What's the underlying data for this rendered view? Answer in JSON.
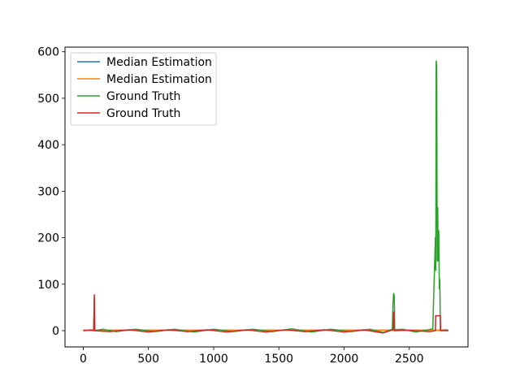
{
  "chart_data": {
    "type": "line",
    "title": "",
    "xlabel": "",
    "ylabel": "",
    "xlim": [
      -140,
      2950
    ],
    "ylim": [
      -35,
      610
    ],
    "x_ticks": [
      0,
      500,
      1000,
      1500,
      2000,
      2500
    ],
    "y_ticks": [
      0,
      100,
      200,
      300,
      400,
      500,
      600
    ],
    "x_tick_labels": [
      "0",
      "500",
      "1000",
      "1500",
      "2000",
      "2500"
    ],
    "y_tick_labels": [
      "0",
      "100",
      "200",
      "300",
      "400",
      "500",
      "600"
    ],
    "grid": false,
    "legend_position": "top-left",
    "series": [
      {
        "name": "Median Estimation",
        "color": "#1f77b4",
        "points": [
          [
            0,
            1
          ],
          [
            2800,
            1
          ]
        ]
      },
      {
        "name": "Median Estimation",
        "color": "#ff7f0e",
        "points": [
          [
            0,
            1
          ],
          [
            2800,
            1
          ]
        ]
      },
      {
        "name": "Ground Truth",
        "color": "#2ca02c",
        "points": [
          [
            0,
            0
          ],
          [
            60,
            2
          ],
          [
            80,
            0
          ],
          [
            85,
            75
          ],
          [
            88,
            0
          ],
          [
            150,
            3
          ],
          [
            250,
            -2
          ],
          [
            400,
            3
          ],
          [
            550,
            -2
          ],
          [
            700,
            3
          ],
          [
            850,
            -3
          ],
          [
            1000,
            3
          ],
          [
            1150,
            -2
          ],
          [
            1300,
            3
          ],
          [
            1450,
            -2
          ],
          [
            1600,
            4
          ],
          [
            1750,
            -3
          ],
          [
            1900,
            3
          ],
          [
            2050,
            -2
          ],
          [
            2200,
            3
          ],
          [
            2300,
            -4
          ],
          [
            2370,
            3
          ],
          [
            2375,
            60
          ],
          [
            2380,
            80
          ],
          [
            2385,
            75
          ],
          [
            2388,
            2
          ],
          [
            2450,
            3
          ],
          [
            2550,
            -3
          ],
          [
            2680,
            4
          ],
          [
            2700,
            200
          ],
          [
            2703,
            130
          ],
          [
            2706,
            580
          ],
          [
            2710,
            570
          ],
          [
            2714,
            150
          ],
          [
            2718,
            265
          ],
          [
            2722,
            150
          ],
          [
            2726,
            215
          ],
          [
            2730,
            90
          ],
          [
            2734,
            110
          ],
          [
            2738,
            0
          ],
          [
            2780,
            2
          ],
          [
            2800,
            0
          ]
        ]
      },
      {
        "name": "Ground Truth",
        "color": "#d62728",
        "points": [
          [
            0,
            0
          ],
          [
            60,
            1
          ],
          [
            80,
            0
          ],
          [
            85,
            77
          ],
          [
            88,
            0
          ],
          [
            200,
            -2
          ],
          [
            350,
            2
          ],
          [
            500,
            -3
          ],
          [
            650,
            2
          ],
          [
            800,
            -2
          ],
          [
            950,
            2
          ],
          [
            1100,
            -3
          ],
          [
            1250,
            2
          ],
          [
            1400,
            -3
          ],
          [
            1550,
            2
          ],
          [
            1700,
            -2
          ],
          [
            1850,
            2
          ],
          [
            2000,
            -3
          ],
          [
            2150,
            2
          ],
          [
            2300,
            -5
          ],
          [
            2375,
            2
          ],
          [
            2378,
            40
          ],
          [
            2382,
            40
          ],
          [
            2385,
            0
          ],
          [
            2500,
            1
          ],
          [
            2650,
            -2
          ],
          [
            2700,
            0
          ],
          [
            2702,
            32
          ],
          [
            2738,
            32
          ],
          [
            2740,
            0
          ],
          [
            2800,
            0
          ]
        ]
      }
    ]
  }
}
